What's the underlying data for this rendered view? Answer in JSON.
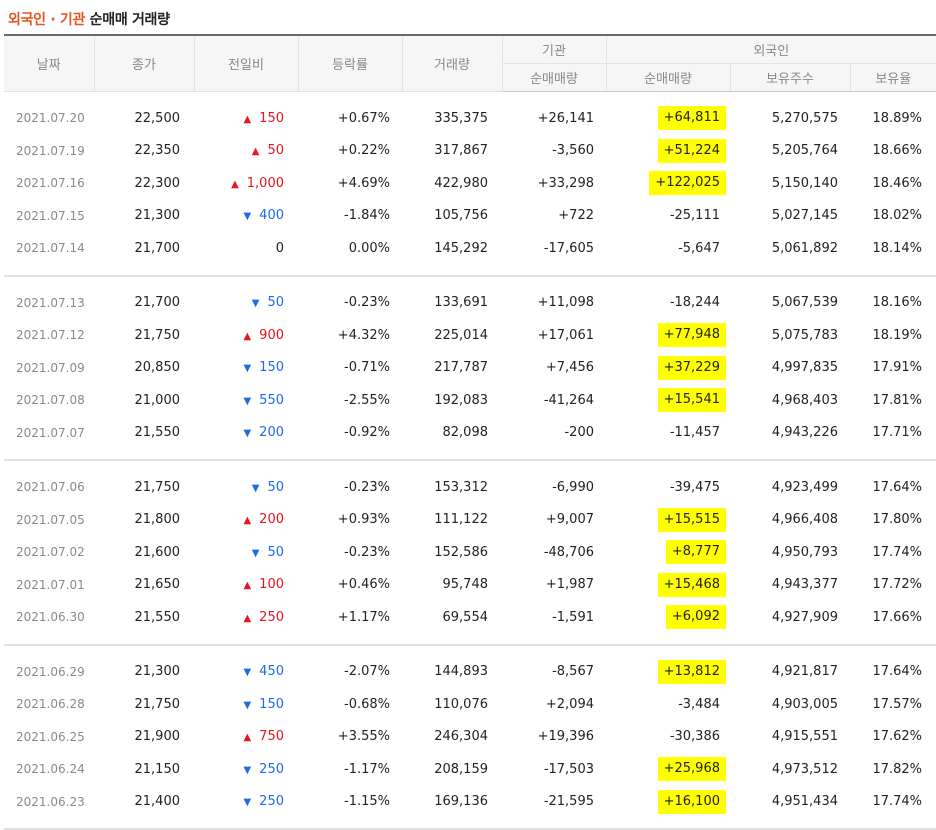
{
  "title": {
    "accent": "외국인 · 기관",
    "rest": "순매매 거래량"
  },
  "headers": {
    "date": "날짜",
    "close": "종가",
    "diff": "전일비",
    "rate": "등락률",
    "volume": "거래량",
    "institution": "기관",
    "foreign": "외국인",
    "inst_net": "순매매량",
    "foreign_net": "순매매량",
    "foreign_hold": "보유주수",
    "foreign_ratio": "보유율"
  },
  "colors": {
    "up": "#e8141e",
    "down": "#1e6ae8",
    "highlight": "#ffff00",
    "accent": "#e8541e"
  },
  "groups": [
    [
      {
        "date": "2021.07.20",
        "close": "22,500",
        "dir": "up",
        "diff": "150",
        "rate": "+0.67%",
        "volume": "335,375",
        "inst": "+26,141",
        "fnet": "+64,811",
        "hl": true,
        "hold": "5,270,575",
        "ratio": "18.89%"
      },
      {
        "date": "2021.07.19",
        "close": "22,350",
        "dir": "up",
        "diff": "50",
        "rate": "+0.22%",
        "volume": "317,867",
        "inst": "-3,560",
        "fnet": "+51,224",
        "hl": true,
        "hold": "5,205,764",
        "ratio": "18.66%"
      },
      {
        "date": "2021.07.16",
        "close": "22,300",
        "dir": "up",
        "diff": "1,000",
        "rate": "+4.69%",
        "volume": "422,980",
        "inst": "+33,298",
        "fnet": "+122,025",
        "hl": true,
        "hold": "5,150,140",
        "ratio": "18.46%"
      },
      {
        "date": "2021.07.15",
        "close": "21,300",
        "dir": "down",
        "diff": "400",
        "rate": "-1.84%",
        "volume": "105,756",
        "inst": "+722",
        "fnet": "-25,111",
        "hl": false,
        "hold": "5,027,145",
        "ratio": "18.02%"
      },
      {
        "date": "2021.07.14",
        "close": "21,700",
        "dir": "none",
        "diff": "0",
        "rate": "0.00%",
        "volume": "145,292",
        "inst": "-17,605",
        "fnet": "-5,647",
        "hl": false,
        "hold": "5,061,892",
        "ratio": "18.14%"
      }
    ],
    [
      {
        "date": "2021.07.13",
        "close": "21,700",
        "dir": "down",
        "diff": "50",
        "rate": "-0.23%",
        "volume": "133,691",
        "inst": "+11,098",
        "fnet": "-18,244",
        "hl": false,
        "hold": "5,067,539",
        "ratio": "18.16%"
      },
      {
        "date": "2021.07.12",
        "close": "21,750",
        "dir": "up",
        "diff": "900",
        "rate": "+4.32%",
        "volume": "225,014",
        "inst": "+17,061",
        "fnet": "+77,948",
        "hl": true,
        "hold": "5,075,783",
        "ratio": "18.19%"
      },
      {
        "date": "2021.07.09",
        "close": "20,850",
        "dir": "down",
        "diff": "150",
        "rate": "-0.71%",
        "volume": "217,787",
        "inst": "+7,456",
        "fnet": "+37,229",
        "hl": true,
        "hold": "4,997,835",
        "ratio": "17.91%"
      },
      {
        "date": "2021.07.08",
        "close": "21,000",
        "dir": "down",
        "diff": "550",
        "rate": "-2.55%",
        "volume": "192,083",
        "inst": "-41,264",
        "fnet": "+15,541",
        "hl": true,
        "hold": "4,968,403",
        "ratio": "17.81%"
      },
      {
        "date": "2021.07.07",
        "close": "21,550",
        "dir": "down",
        "diff": "200",
        "rate": "-0.92%",
        "volume": "82,098",
        "inst": "-200",
        "fnet": "-11,457",
        "hl": false,
        "hold": "4,943,226",
        "ratio": "17.71%"
      }
    ],
    [
      {
        "date": "2021.07.06",
        "close": "21,750",
        "dir": "down",
        "diff": "50",
        "rate": "-0.23%",
        "volume": "153,312",
        "inst": "-6,990",
        "fnet": "-39,475",
        "hl": false,
        "hold": "4,923,499",
        "ratio": "17.64%"
      },
      {
        "date": "2021.07.05",
        "close": "21,800",
        "dir": "up",
        "diff": "200",
        "rate": "+0.93%",
        "volume": "111,122",
        "inst": "+9,007",
        "fnet": "+15,515",
        "hl": true,
        "hold": "4,966,408",
        "ratio": "17.80%"
      },
      {
        "date": "2021.07.02",
        "close": "21,600",
        "dir": "down",
        "diff": "50",
        "rate": "-0.23%",
        "volume": "152,586",
        "inst": "-48,706",
        "fnet": "+8,777",
        "hl": true,
        "hold": "4,950,793",
        "ratio": "17.74%"
      },
      {
        "date": "2021.07.01",
        "close": "21,650",
        "dir": "up",
        "diff": "100",
        "rate": "+0.46%",
        "volume": "95,748",
        "inst": "+1,987",
        "fnet": "+15,468",
        "hl": true,
        "hold": "4,943,377",
        "ratio": "17.72%"
      },
      {
        "date": "2021.06.30",
        "close": "21,550",
        "dir": "up",
        "diff": "250",
        "rate": "+1.17%",
        "volume": "69,554",
        "inst": "-1,591",
        "fnet": "+6,092",
        "hl": true,
        "hold": "4,927,909",
        "ratio": "17.66%"
      }
    ],
    [
      {
        "date": "2021.06.29",
        "close": "21,300",
        "dir": "down",
        "diff": "450",
        "rate": "-2.07%",
        "volume": "144,893",
        "inst": "-8,567",
        "fnet": "+13,812",
        "hl": true,
        "hold": "4,921,817",
        "ratio": "17.64%"
      },
      {
        "date": "2021.06.28",
        "close": "21,750",
        "dir": "down",
        "diff": "150",
        "rate": "-0.68%",
        "volume": "110,076",
        "inst": "+2,094",
        "fnet": "-3,484",
        "hl": false,
        "hold": "4,903,005",
        "ratio": "17.57%"
      },
      {
        "date": "2021.06.25",
        "close": "21,900",
        "dir": "up",
        "diff": "750",
        "rate": "+3.55%",
        "volume": "246,304",
        "inst": "+19,396",
        "fnet": "-30,386",
        "hl": false,
        "hold": "4,915,551",
        "ratio": "17.62%"
      },
      {
        "date": "2021.06.24",
        "close": "21,150",
        "dir": "down",
        "diff": "250",
        "rate": "-1.17%",
        "volume": "208,159",
        "inst": "-17,503",
        "fnet": "+25,968",
        "hl": true,
        "hold": "4,973,512",
        "ratio": "17.82%"
      },
      {
        "date": "2021.06.23",
        "close": "21,400",
        "dir": "down",
        "diff": "250",
        "rate": "-1.15%",
        "volume": "169,136",
        "inst": "-21,595",
        "fnet": "+16,100",
        "hl": true,
        "hold": "4,951,434",
        "ratio": "17.74%"
      }
    ]
  ]
}
